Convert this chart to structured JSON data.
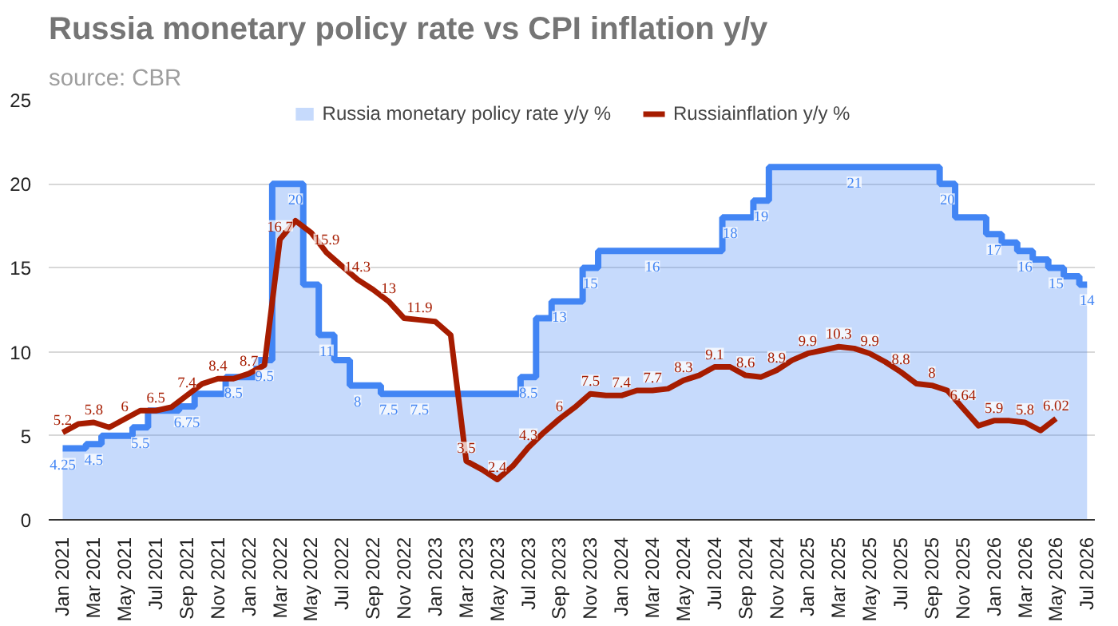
{
  "chart_data": {
    "type": "line",
    "title": "Russia monetary policy rate vs CPI inflation y/y",
    "annotations": [
      "source: CBR"
    ],
    "categories": [
      "Jan 2021",
      null,
      "Mar 2021",
      null,
      "May 2021",
      null,
      "Jul 2021",
      null,
      "Sep 2021",
      null,
      "Nov 2021",
      null,
      "Jan 2022",
      null,
      "Mar 2022",
      null,
      "May 2022",
      null,
      "Jul 2022",
      null,
      "Sep 2022",
      null,
      "Nov 2022",
      null,
      "Jan 2023",
      null,
      "Mar 2023",
      null,
      "May 2023",
      null,
      "Jul 2023",
      null,
      "Sep 2023",
      null,
      "Nov 2023",
      null,
      "Jan 2024",
      null,
      "Mar 2024",
      null,
      "May 2024",
      null,
      "Jul 2024",
      null,
      "Sep 2024",
      null,
      "Nov 2024",
      null,
      "Jan 2025",
      null,
      "Mar 2025",
      null,
      "May 2025",
      null,
      "Jul 2025",
      null,
      "Sep 2025",
      null,
      "Nov 2025",
      null,
      "Jan 2026",
      null,
      "Mar 2026",
      null,
      "May 2026",
      null,
      "Jul 2026"
    ],
    "series": [
      {
        "name": "Russia monetary policy rate y/y %",
        "type": "area",
        "color": "#4285f4",
        "values": [
          4.25,
          4.25,
          4.5,
          5,
          5,
          5.5,
          6.5,
          6.5,
          6.75,
          7.5,
          7.5,
          8.5,
          8.5,
          9.5,
          20,
          20,
          14,
          11,
          9.5,
          8,
          8,
          7.5,
          7.5,
          7.5,
          7.5,
          7.5,
          7.5,
          7.5,
          7.5,
          7.5,
          8.5,
          12,
          13,
          13,
          15,
          16,
          16,
          16,
          16,
          16,
          16,
          16,
          16,
          18,
          18,
          19,
          21,
          21,
          21,
          21,
          21,
          21,
          21,
          21,
          21,
          21,
          21,
          20,
          18,
          18,
          17,
          16.5,
          16,
          15.5,
          15,
          14.5,
          14
        ],
        "value_labels": [
          "4.25",
          null,
          "4.5",
          null,
          null,
          "5.5",
          null,
          null,
          "6.75",
          null,
          null,
          "8.5",
          null,
          "9.5",
          null,
          "20",
          null,
          "11",
          null,
          "8",
          null,
          "7.5",
          null,
          "7.5",
          null,
          null,
          null,
          null,
          null,
          null,
          "8.5",
          null,
          "13",
          null,
          "15",
          null,
          null,
          null,
          "16",
          null,
          null,
          null,
          null,
          "18",
          null,
          "19",
          null,
          null,
          null,
          null,
          null,
          "21",
          null,
          null,
          null,
          null,
          null,
          "20",
          null,
          null,
          "17",
          null,
          "16",
          null,
          "15",
          null,
          "14"
        ]
      },
      {
        "name": "Russiainflation y/y %",
        "color": "#a61c00",
        "values": [
          5.2,
          5.7,
          5.8,
          5.5,
          6,
          6.5,
          6.5,
          6.7,
          7.4,
          8.1,
          8.4,
          8.4,
          8.7,
          9.2,
          16.7,
          17.8,
          17.1,
          15.9,
          15.1,
          14.3,
          13.7,
          13,
          12,
          11.9,
          11.8,
          11,
          3.5,
          3,
          2.4,
          3.2,
          4.3,
          5.2,
          6,
          6.7,
          7.5,
          7.4,
          7.4,
          7.7,
          7.7,
          7.8,
          8.3,
          8.6,
          9.1,
          9.1,
          8.6,
          8.5,
          8.9,
          9.5,
          9.9,
          10.1,
          10.3,
          10.2,
          9.9,
          9.4,
          8.8,
          8.1,
          8,
          7.7,
          6.64,
          5.6,
          5.9,
          5.9,
          5.8,
          5.31,
          6.02,
          null,
          null
        ],
        "value_labels": [
          "5.2",
          null,
          "5.8",
          null,
          "6",
          null,
          "6.5",
          null,
          "7.4",
          null,
          "8.4",
          null,
          "8.7",
          null,
          "16.7",
          null,
          null,
          "15.9",
          null,
          "14.3",
          null,
          "13",
          null,
          "11.9",
          null,
          null,
          "3.5",
          null,
          "2.4",
          null,
          "4.3",
          null,
          "6",
          null,
          "7.5",
          null,
          "7.4",
          null,
          "7.7",
          null,
          "8.3",
          null,
          "9.1",
          null,
          "8.6",
          null,
          "8.9",
          null,
          "9.9",
          null,
          "10.3",
          null,
          "9.9",
          null,
          "8.8",
          null,
          "8",
          null,
          "6.64",
          null,
          "5.9",
          null,
          "5.8",
          null,
          "6.02",
          null,
          null
        ]
      }
    ],
    "ylim": [
      0,
      25
    ],
    "yticks": [
      0,
      5,
      10,
      15,
      20,
      25
    ],
    "grid": "y",
    "legend": "top"
  }
}
